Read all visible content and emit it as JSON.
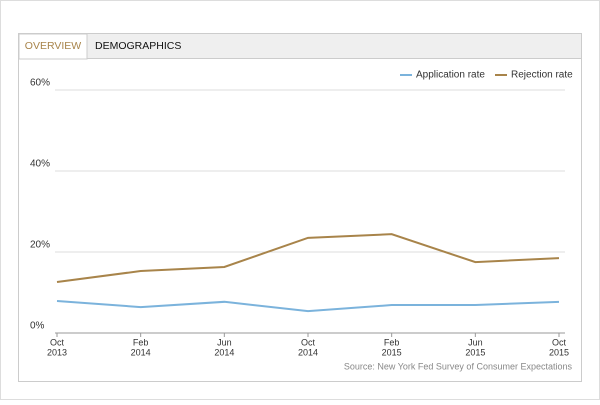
{
  "tabs": [
    "OVERVIEW",
    "DEMOGRAPHICS"
  ],
  "source": "Source: New York Fed Survey of Consumer Expectations",
  "chart_data": {
    "type": "line",
    "categories": [
      [
        "Oct",
        "2013"
      ],
      [
        "Feb",
        "2014"
      ],
      [
        "Jun",
        "2014"
      ],
      [
        "Oct",
        "2014"
      ],
      [
        "Feb",
        "2015"
      ],
      [
        "Jun",
        "2015"
      ],
      [
        "Oct",
        "2015"
      ]
    ],
    "series": [
      {
        "name": "Application rate",
        "color": "#7bb3dc",
        "values": [
          7.9,
          6.4,
          7.7,
          5.4,
          6.9,
          6.9,
          7.7
        ]
      },
      {
        "name": "Rejection rate",
        "color": "#a8844a",
        "values": [
          12.6,
          15.3,
          16.3,
          23.5,
          24.4,
          17.5,
          18.5
        ]
      }
    ],
    "ylim": [
      0,
      60
    ],
    "yticks": [
      {
        "value": 0,
        "label": "0%"
      },
      {
        "value": 20,
        "label": "20%"
      },
      {
        "value": 40,
        "label": "40%"
      },
      {
        "value": 60,
        "label": "60%"
      }
    ],
    "grid": true,
    "legend": "top-right"
  }
}
